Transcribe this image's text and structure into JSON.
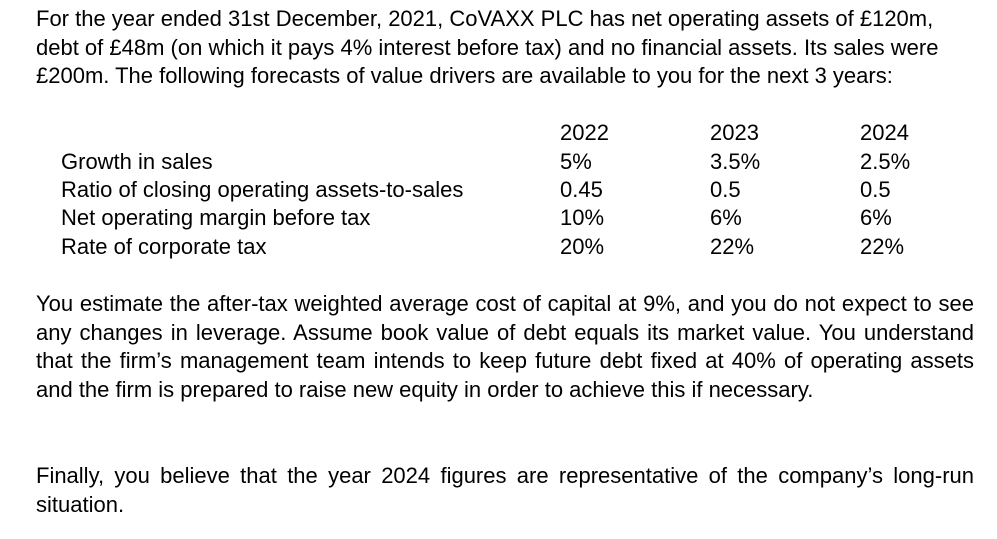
{
  "intro_text": "For the year ended 31st December, 2021, CoVAXX PLC has net operating assets of £120m, debt of £48m (on which it pays 4% interest before tax) and no financial assets. Its sales were £200m.  The following forecasts of value drivers are available to you for the next 3 years:",
  "forecast_table": {
    "years": [
      "2022",
      "2023",
      "2024"
    ],
    "rows": [
      {
        "label": "Growth in sales",
        "values": [
          "5%",
          "3.5%",
          "2.5%"
        ]
      },
      {
        "label": "Ratio of closing operating assets-to-sales",
        "values": [
          "0.45",
          "0.5",
          "0.5"
        ]
      },
      {
        "label": "Net operating margin before tax",
        "values": [
          "10%",
          "6%",
          "6%"
        ]
      },
      {
        "label": "Rate of corporate tax",
        "values": [
          "20%",
          "22%",
          "22%"
        ]
      }
    ]
  },
  "estimate_text": "You estimate the after-tax weighted average cost of capital at 9%, and you do not expect to see any changes in leverage. Assume book value of debt equals its market value. You understand that the firm’s management team intends to keep future debt fixed at 40% of operating assets and the firm is prepared to raise new equity in order to achieve this if necessary.",
  "final_text": "Finally, you believe that the year 2024 figures are representative of the company’s long-run situation."
}
